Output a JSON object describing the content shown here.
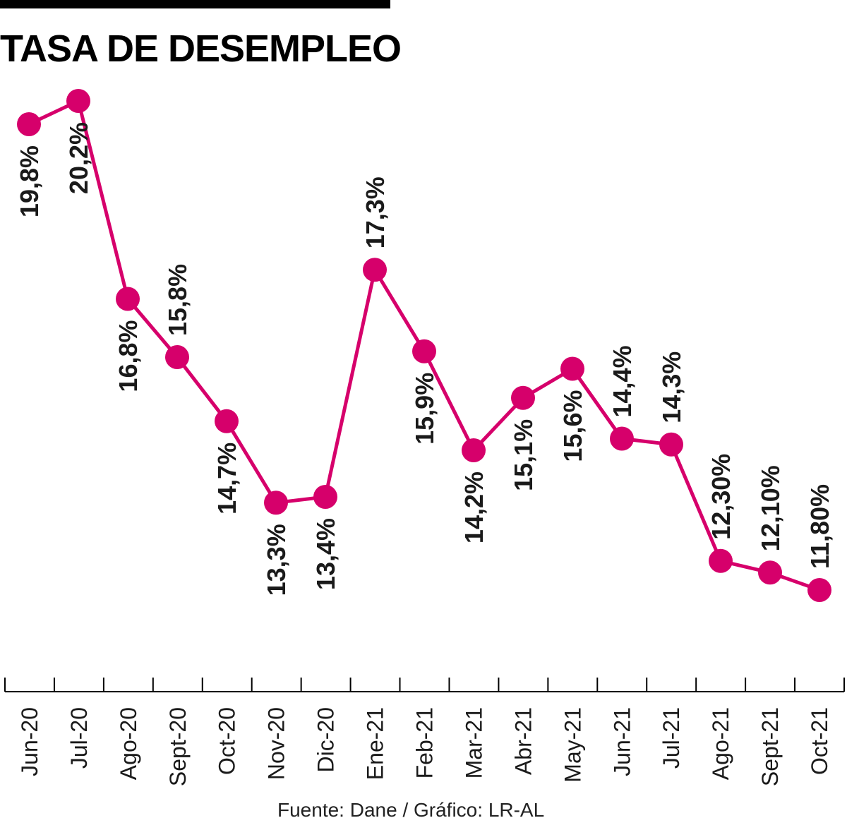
{
  "title": "TASA DE DESEMPLEO",
  "source": "Fuente: Dane / Gráfico: LR-AL",
  "colors": {
    "line": "#d6006b",
    "text": "#1a1a1a",
    "axis": "#000000"
  },
  "chart_data": {
    "type": "line",
    "title": "TASA DE DESEMPLEO",
    "xlabel": "",
    "ylabel": "",
    "categories": [
      "Jun-20",
      "Jul-20",
      "Ago-20",
      "Sept-20",
      "Oct-20",
      "Nov-20",
      "Dic-20",
      "Ene-21",
      "Feb-21",
      "Mar-21",
      "Abr-21",
      "May-21",
      "Jun-21",
      "Jul-21",
      "Ago-21",
      "Sept-21",
      "Oct-21"
    ],
    "values": [
      19.8,
      20.2,
      16.8,
      15.8,
      14.7,
      13.3,
      13.4,
      17.3,
      15.9,
      14.2,
      15.1,
      15.6,
      14.4,
      14.3,
      12.3,
      12.1,
      11.8
    ],
    "data_labels": [
      "19,8%",
      "20,2%",
      "16,8%",
      "15,8%",
      "14,7%",
      "13,3%",
      "13,4%",
      "17,3%",
      "15,9%",
      "14,2%",
      "15,1%",
      "15,6%",
      "14,4%",
      "14,3%",
      "12,30%",
      "12,10%",
      "11,80%"
    ],
    "label_side": [
      "below",
      "below",
      "below",
      "above",
      "below",
      "below",
      "below",
      "above",
      "below",
      "below",
      "below",
      "below",
      "above",
      "above",
      "above",
      "above",
      "above"
    ],
    "grid": false,
    "legend": "none"
  }
}
